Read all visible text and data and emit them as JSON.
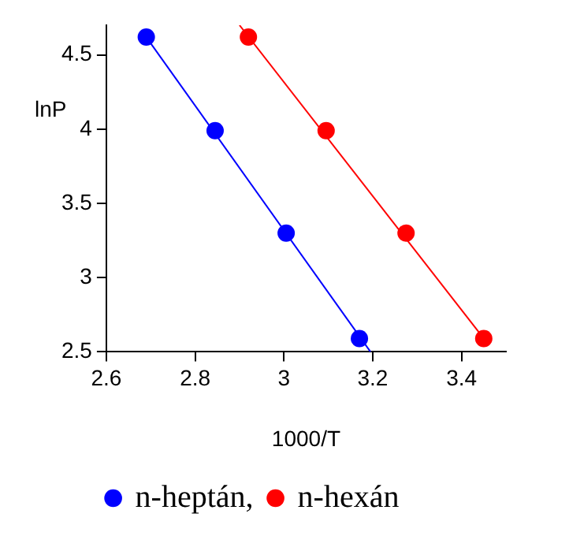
{
  "chart_data": {
    "type": "scatter",
    "xlabel": "1000/T",
    "ylabel": "lnP",
    "series": [
      {
        "name": "n-heptán,",
        "marker": "circle",
        "color": "#0000ff",
        "x": [
          2.69,
          2.845,
          3.005,
          3.17
        ],
        "values": [
          4.62,
          3.99,
          3.3,
          2.59
        ]
      },
      {
        "name": "n-hexán",
        "marker": "circle",
        "color": "#ff0000",
        "x": [
          2.92,
          3.095,
          3.275,
          3.45
        ],
        "values": [
          4.62,
          3.99,
          3.3,
          2.59
        ]
      },
      {
        "type": "line",
        "marker": "none",
        "color": "#0000ff",
        "x": [
          2.69,
          3.195
        ],
        "values": [
          4.62,
          2.5
        ]
      },
      {
        "type": "line",
        "marker": "none",
        "color": "#ff0000",
        "x": [
          2.9,
          3.45
        ],
        "values": [
          4.7,
          2.59
        ]
      }
    ],
    "xlim": [
      2.6,
      3.5
    ],
    "xticks": [
      2.6,
      2.8,
      3,
      3.2,
      3.4
    ],
    "ylim": [
      2.5,
      4.7
    ],
    "yticks": [
      2.5,
      3,
      3.5,
      4,
      4.5
    ],
    "grid": false,
    "legend": "bottom"
  }
}
